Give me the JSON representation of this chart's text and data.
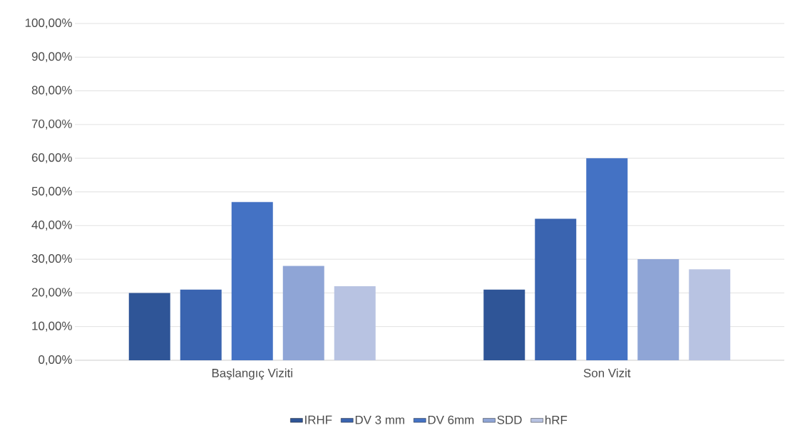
{
  "chart_data": {
    "type": "bar",
    "categories": [
      "Başlangıç Viziti",
      "Son Vizit"
    ],
    "series": [
      {
        "name": "IRHF",
        "color": "#2f5597",
        "values": [
          20,
          21
        ]
      },
      {
        "name": "DV 3 mm",
        "color": "#3a64b0",
        "values": [
          21,
          42
        ]
      },
      {
        "name": "DV 6mm",
        "color": "#4472c4",
        "values": [
          47,
          60
        ]
      },
      {
        "name": "SDD",
        "color": "#8fa5d6",
        "values": [
          28,
          30
        ]
      },
      {
        "name": "hRF",
        "color": "#b8c3e2",
        "values": [
          22,
          27
        ]
      }
    ],
    "ylim": [
      0,
      100
    ],
    "yticks": [
      {
        "value": 0,
        "label": "0,00%"
      },
      {
        "value": 10,
        "label": "10,00%"
      },
      {
        "value": 20,
        "label": "20,00%"
      },
      {
        "value": 30,
        "label": "30,00%"
      },
      {
        "value": 40,
        "label": "40,00%"
      },
      {
        "value": 50,
        "label": "50,00%"
      },
      {
        "value": 60,
        "label": "60,00%"
      },
      {
        "value": 70,
        "label": "70,00%"
      },
      {
        "value": 80,
        "label": "80,00%"
      },
      {
        "value": 90,
        "label": "90,00%"
      },
      {
        "value": 100,
        "label": "100,00%"
      }
    ],
    "grid": "y",
    "legend": "bottom"
  }
}
